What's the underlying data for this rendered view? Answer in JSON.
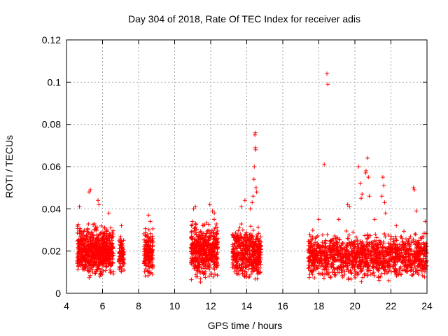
{
  "chart_data": {
    "type": "scatter",
    "title": "Day 304 of 2018, Rate Of TEC Index for receiver adis",
    "xlabel": "GPS time / hours",
    "ylabel": "ROTI / TECUs",
    "xlim": [
      4,
      24
    ],
    "ylim": [
      0,
      0.12
    ],
    "x_ticks": [
      4,
      6,
      8,
      10,
      12,
      14,
      16,
      18,
      20,
      22,
      24
    ],
    "x_tick_labels": [
      "4",
      "6",
      "8",
      "10",
      "12",
      "14",
      "16",
      "18",
      "20",
      "22",
      "24"
    ],
    "y_ticks": [
      0,
      0.02,
      0.04,
      0.06,
      0.08,
      0.1,
      0.12
    ],
    "y_tick_labels": [
      "0",
      "0.02",
      "0.04",
      "0.06",
      "0.08",
      "0.1",
      "0.12"
    ],
    "grid": true,
    "marker": "+",
    "color": "#ff0000",
    "clusters": [
      {
        "x_range": [
          4.6,
          6.6
        ],
        "y_low": 0.005,
        "y_high": 0.034,
        "count": 700
      },
      {
        "x_range": [
          6.9,
          7.2
        ],
        "y_low": 0.008,
        "y_high": 0.028,
        "count": 80
      },
      {
        "x_range": [
          8.3,
          8.8
        ],
        "y_low": 0.005,
        "y_high": 0.032,
        "count": 160
      },
      {
        "x_range": [
          10.9,
          12.4
        ],
        "y_low": 0.004,
        "y_high": 0.035,
        "count": 500
      },
      {
        "x_range": [
          13.2,
          14.8
        ],
        "y_low": 0.004,
        "y_high": 0.033,
        "count": 500
      },
      {
        "x_range": [
          17.4,
          24.0
        ],
        "y_low": 0.004,
        "y_high": 0.03,
        "count": 1400
      }
    ],
    "series": [
      {
        "name": "ROTI",
        "points": [
          [
            4.72,
            0.041
          ],
          [
            5.25,
            0.048
          ],
          [
            5.33,
            0.049
          ],
          [
            5.75,
            0.044
          ],
          [
            5.8,
            0.042
          ],
          [
            6.35,
            0.038
          ],
          [
            7.05,
            0.032
          ],
          [
            8.55,
            0.037
          ],
          [
            8.65,
            0.034
          ],
          [
            11.05,
            0.04
          ],
          [
            11.15,
            0.041
          ],
          [
            11.95,
            0.042
          ],
          [
            12.1,
            0.039
          ],
          [
            12.2,
            0.038
          ],
          [
            13.7,
            0.041
          ],
          [
            13.9,
            0.044
          ],
          [
            14.2,
            0.04
          ],
          [
            14.3,
            0.043
          ],
          [
            14.35,
            0.046
          ],
          [
            14.4,
            0.054
          ],
          [
            14.42,
            0.06
          ],
          [
            14.45,
            0.075
          ],
          [
            14.47,
            0.076
          ],
          [
            14.48,
            0.069
          ],
          [
            14.5,
            0.068
          ],
          [
            14.52,
            0.05
          ],
          [
            14.55,
            0.048
          ],
          [
            18.0,
            0.035
          ],
          [
            18.3,
            0.061
          ],
          [
            18.45,
            0.104
          ],
          [
            18.5,
            0.099
          ],
          [
            19.1,
            0.035
          ],
          [
            19.6,
            0.042
          ],
          [
            19.7,
            0.041
          ],
          [
            20.2,
            0.06
          ],
          [
            20.3,
            0.052
          ],
          [
            20.35,
            0.045
          ],
          [
            20.4,
            0.047
          ],
          [
            20.6,
            0.057
          ],
          [
            20.62,
            0.058
          ],
          [
            20.7,
            0.064
          ],
          [
            20.75,
            0.055
          ],
          [
            20.8,
            0.046
          ],
          [
            21.1,
            0.035
          ],
          [
            21.5,
            0.046
          ],
          [
            21.55,
            0.055
          ],
          [
            21.6,
            0.051
          ],
          [
            21.65,
            0.043
          ],
          [
            21.7,
            0.038
          ],
          [
            22.3,
            0.032
          ],
          [
            23.25,
            0.05
          ],
          [
            23.3,
            0.049
          ],
          [
            23.4,
            0.039
          ],
          [
            23.9,
            0.034
          ]
        ]
      }
    ]
  }
}
